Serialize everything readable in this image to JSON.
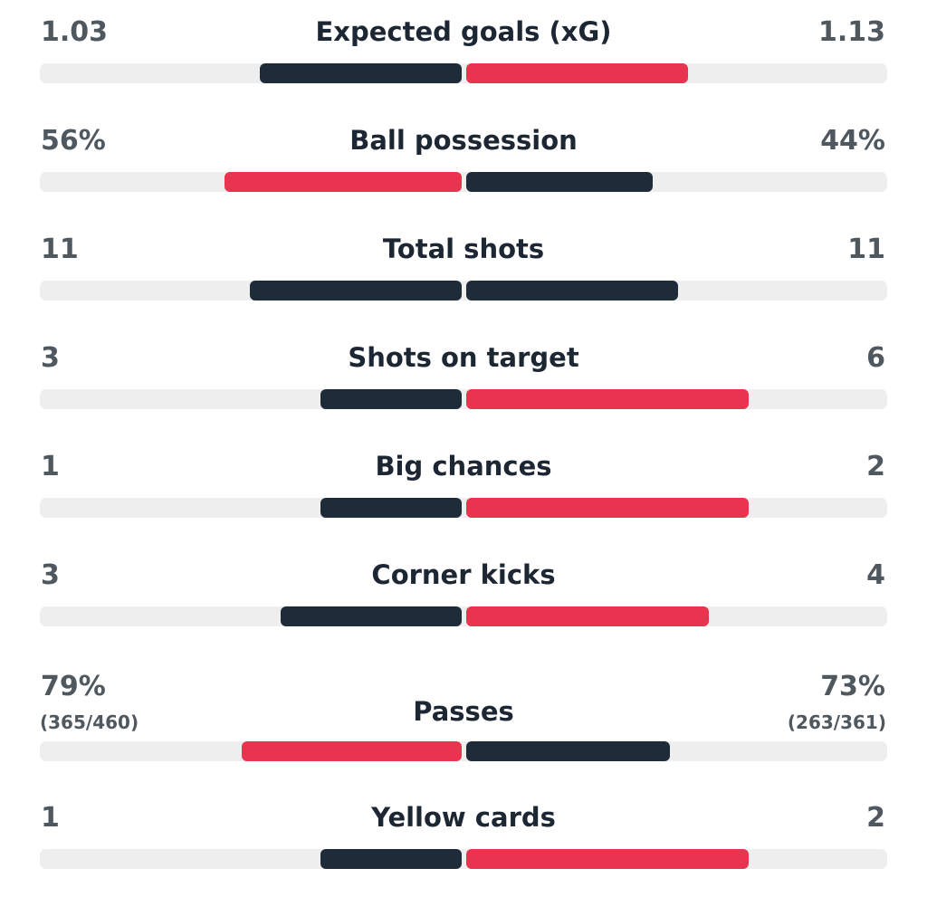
{
  "colors": {
    "dark_bar": "#1d2c38",
    "red_bar": "#e8344f",
    "track": "#eeeeee",
    "label_text": "#1c2733",
    "value_text": "#4f575f"
  },
  "stats": [
    {
      "label": "Expected goals (xG)",
      "home": "1.03",
      "away": "1.13",
      "home_share": 0.238,
      "away_share": 0.262,
      "home_color": "dark",
      "away_color": "red"
    },
    {
      "label": "Ball possession",
      "home": "56%",
      "away": "44%",
      "home_share": 0.28,
      "away_share": 0.22,
      "home_color": "red",
      "away_color": "dark"
    },
    {
      "label": "Total shots",
      "home": "11",
      "away": "11",
      "home_share": 0.25,
      "away_share": 0.25,
      "home_color": "dark",
      "away_color": "dark"
    },
    {
      "label": "Shots on target",
      "home": "3",
      "away": "6",
      "home_share": 0.167,
      "away_share": 0.333,
      "home_color": "dark",
      "away_color": "red"
    },
    {
      "label": "Big chances",
      "home": "1",
      "away": "2",
      "home_share": 0.167,
      "away_share": 0.333,
      "home_color": "dark",
      "away_color": "red"
    },
    {
      "label": "Corner kicks",
      "home": "3",
      "away": "4",
      "home_share": 0.214,
      "away_share": 0.286,
      "home_color": "dark",
      "away_color": "red"
    },
    {
      "label": "Passes",
      "home": "79%",
      "away": "73%",
      "home_sub": "(365/460)",
      "away_sub": "(263/361)",
      "home_share": 0.26,
      "away_share": 0.24,
      "home_color": "red",
      "away_color": "dark"
    },
    {
      "label": "Yellow cards",
      "home": "1",
      "away": "2",
      "home_share": 0.167,
      "away_share": 0.333,
      "home_color": "dark",
      "away_color": "red"
    }
  ]
}
